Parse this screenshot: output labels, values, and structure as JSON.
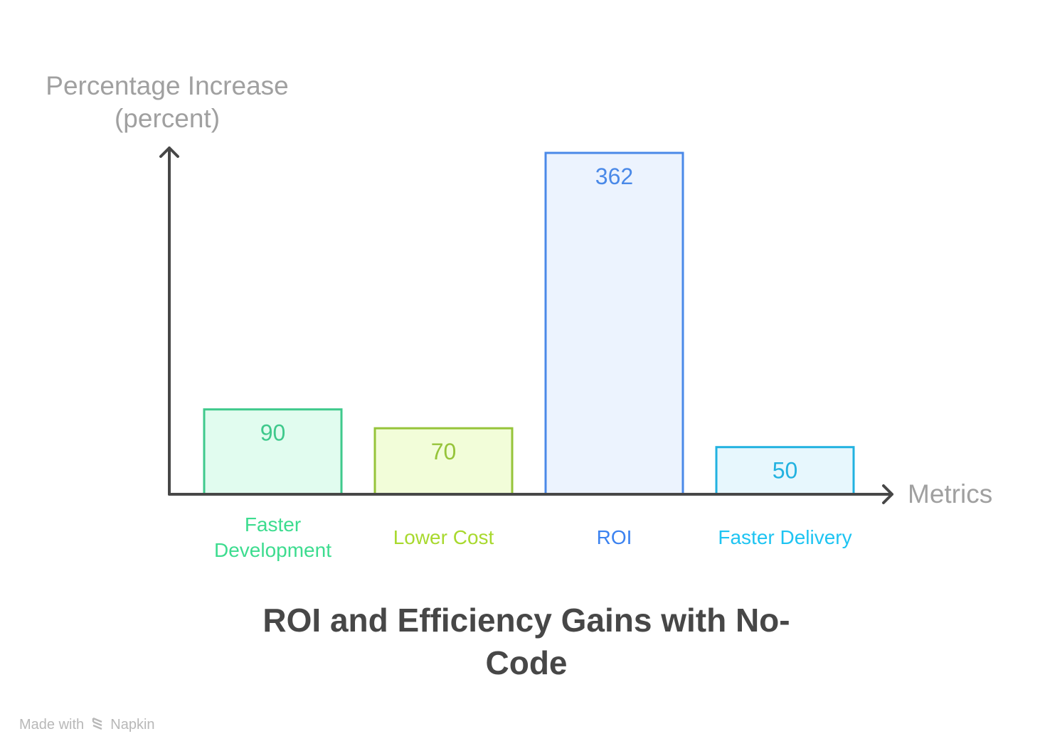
{
  "chart_data": {
    "type": "bar",
    "title": "ROI and Efficiency Gains with No-Code",
    "xlabel": "Metrics",
    "ylabel": "Percentage Increase (percent)",
    "categories": [
      "Faster Development",
      "Lower Cost",
      "ROI",
      "Faster Delivery"
    ],
    "values": [
      90,
      70,
      362,
      50
    ],
    "ylim": [
      0,
      362
    ],
    "grid": false,
    "colors": [
      {
        "stroke": "#3fc98c",
        "fill": "#e1fcef",
        "label": "#3ddc8f"
      },
      {
        "stroke": "#96c43a",
        "fill": "#f2fdd9",
        "label": "#a8d92e"
      },
      {
        "stroke": "#4a89e8",
        "fill": "#ecf3fe",
        "label": "#3b82f0"
      },
      {
        "stroke": "#22b2e0",
        "fill": "#e7f7fd",
        "label": "#1ec4f2"
      }
    ]
  },
  "ylabel_lines": [
    "Percentage Increase",
    "(percent)"
  ],
  "footer": {
    "made_with": "Made with",
    "brand": "Napkin"
  }
}
